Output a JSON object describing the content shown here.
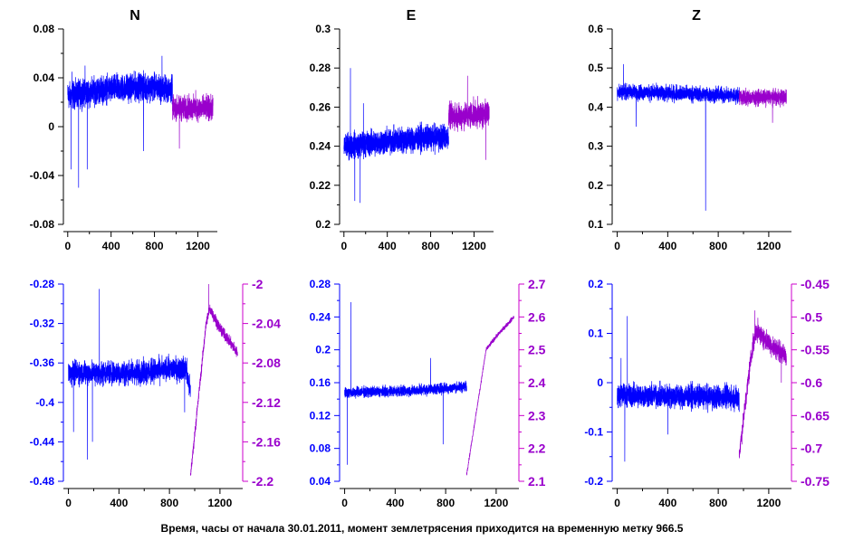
{
  "caption": "Время, часы от начала 30.01.2011, момент землетрясения приходится на временную метку 966.5",
  "colors": {
    "before": "#0000ff",
    "after": "#9900cc",
    "axis": "#000000",
    "right_axis": "#cc00cc"
  },
  "chart_data": [
    {
      "id": "top-N",
      "type": "line",
      "title": "N",
      "xlim": [
        -40,
        1380
      ],
      "xticks": [
        0,
        400,
        800,
        1200
      ],
      "ylim": [
        -0.08,
        0.08
      ],
      "yticks": [
        "-0.08",
        "-0.04",
        "0",
        "0.04",
        "0.08"
      ],
      "series": [
        {
          "color": "#0000ff",
          "x_range": [
            0,
            966
          ],
          "base": [
            [
              0,
              0.025
            ],
            [
              300,
              0.03
            ],
            [
              700,
              0.033
            ],
            [
              966,
              0.03
            ]
          ],
          "noise": 0.01,
          "spikes": [
            [
              30,
              -0.035
            ],
            [
              40,
              0.045
            ],
            [
              100,
              -0.05
            ],
            [
              160,
              0.05
            ],
            [
              180,
              -0.035
            ],
            [
              700,
              -0.02
            ],
            [
              870,
              0.058
            ]
          ]
        },
        {
          "color": "#9900cc",
          "x_range": [
            966,
            1340
          ],
          "base": [
            [
              966,
              0.015
            ],
            [
              1340,
              0.015
            ]
          ],
          "noise": 0.009,
          "spikes": [
            [
              1030,
              -0.018
            ],
            [
              1180,
              0.03
            ]
          ]
        }
      ]
    },
    {
      "id": "top-E",
      "type": "line",
      "title": "E",
      "xlim": [
        -40,
        1380
      ],
      "xticks": [
        0,
        400,
        800,
        1200
      ],
      "ylim": [
        0.2,
        0.3
      ],
      "yticks": [
        "0.2",
        "0.22",
        "0.24",
        "0.26",
        "0.28",
        "0.3"
      ],
      "series": [
        {
          "color": "#0000ff",
          "x_range": [
            0,
            966
          ],
          "base": [
            [
              0,
              0.24
            ],
            [
              500,
              0.243
            ],
            [
              966,
              0.245
            ]
          ],
          "noise": 0.006,
          "spikes": [
            [
              60,
              0.28
            ],
            [
              100,
              0.212
            ],
            [
              150,
              0.211
            ],
            [
              180,
              0.262
            ]
          ]
        },
        {
          "color": "#9900cc",
          "x_range": [
            966,
            1340
          ],
          "base": [
            [
              966,
              0.255
            ],
            [
              1340,
              0.257
            ]
          ],
          "noise": 0.006,
          "spikes": [
            [
              1140,
              0.276
            ],
            [
              1310,
              0.233
            ]
          ]
        }
      ]
    },
    {
      "id": "top-Z",
      "type": "line",
      "title": "Z",
      "xlim": [
        -40,
        1380
      ],
      "xticks": [
        0,
        400,
        800,
        1200
      ],
      "ylim": [
        0.1,
        0.6
      ],
      "yticks": [
        "0.1",
        "0.2",
        "0.3",
        "0.4",
        "0.5",
        "0.6"
      ],
      "series": [
        {
          "color": "#0000ff",
          "x_range": [
            0,
            966
          ],
          "base": [
            [
              0,
              0.44
            ],
            [
              966,
              0.43
            ]
          ],
          "noise": 0.018,
          "spikes": [
            [
              50,
              0.51
            ],
            [
              150,
              0.35
            ],
            [
              700,
              0.135
            ]
          ]
        },
        {
          "color": "#9900cc",
          "x_range": [
            966,
            1340
          ],
          "base": [
            [
              966,
              0.425
            ],
            [
              1340,
              0.425
            ]
          ],
          "noise": 0.018,
          "spikes": [
            [
              1230,
              0.36
            ]
          ]
        }
      ]
    },
    {
      "id": "bottom-N",
      "type": "line",
      "xlim": [
        -40,
        1380
      ],
      "xticks": [
        0,
        400,
        800,
        1200
      ],
      "ylim": [
        -0.48,
        -0.28
      ],
      "yticks": [
        "-0.48",
        "-0.44",
        "-0.4",
        "-0.36",
        "-0.32",
        "-0.28"
      ],
      "y2lim": [
        -2.2,
        -2.0
      ],
      "y2ticks": [
        "-2.2",
        "-2.16",
        "-2.12",
        "-2.08",
        "-2.04",
        "-2"
      ],
      "series": [
        {
          "color": "#0000ff",
          "axis": "left",
          "x_range": [
            0,
            966
          ],
          "base": [
            [
              0,
              -0.37
            ],
            [
              500,
              -0.37
            ],
            [
              930,
              -0.365
            ],
            [
              966,
              -0.39
            ]
          ],
          "noise": 0.011,
          "spikes": [
            [
              40,
              -0.43
            ],
            [
              150,
              -0.458
            ],
            [
              190,
              -0.44
            ],
            [
              245,
              -0.285
            ],
            [
              920,
              -0.41
            ]
          ]
        },
        {
          "color": "#9900cc",
          "axis": "right",
          "x_range": [
            966,
            1340
          ],
          "base": [
            [
              966,
              -2.195
            ],
            [
              1090,
              -2.04
            ],
            [
              1120,
              -2.025
            ],
            [
              1200,
              -2.045
            ],
            [
              1340,
              -2.07
            ]
          ],
          "noise": 0.005,
          "spikes": [
            [
              1110,
              -2.0
            ]
          ]
        }
      ]
    },
    {
      "id": "bottom-E",
      "type": "line",
      "xlim": [
        -40,
        1380
      ],
      "xticks": [
        0,
        400,
        800,
        1200
      ],
      "ylim": [
        0.04,
        0.28
      ],
      "yticks": [
        "0.04",
        "0.08",
        "0.12",
        "0.16",
        "0.2",
        "0.24",
        "0.28"
      ],
      "y2lim": [
        2.1,
        2.7
      ],
      "y2ticks": [
        "2.1",
        "2.2",
        "2.3",
        "2.4",
        "2.5",
        "2.6",
        "2.7"
      ],
      "series": [
        {
          "color": "#0000ff",
          "axis": "left",
          "x_range": [
            0,
            966
          ],
          "base": [
            [
              0,
              0.148
            ],
            [
              500,
              0.15
            ],
            [
              966,
              0.155
            ]
          ],
          "noise": 0.006,
          "spikes": [
            [
              20,
              0.06
            ],
            [
              50,
              0.258
            ],
            [
              680,
              0.19
            ],
            [
              780,
              0.085
            ]
          ]
        },
        {
          "color": "#9900cc",
          "axis": "right",
          "x_range": [
            966,
            1340
          ],
          "base": [
            [
              966,
              2.12
            ],
            [
              1120,
              2.5
            ],
            [
              1200,
              2.54
            ],
            [
              1340,
              2.6
            ]
          ],
          "noise": 0.006,
          "spikes": []
        }
      ]
    },
    {
      "id": "bottom-Z",
      "type": "line",
      "xlim": [
        -40,
        1380
      ],
      "xticks": [
        0,
        400,
        800,
        1200
      ],
      "ylim": [
        -0.2,
        0.2
      ],
      "yticks": [
        "-0.2",
        "-0.1",
        "0",
        "0.1",
        "0.2"
      ],
      "y2lim": [
        -0.75,
        -0.45
      ],
      "y2ticks": [
        "-0.75",
        "-0.7",
        "-0.65",
        "-0.6",
        "-0.55",
        "-0.5",
        "-0.45"
      ],
      "series": [
        {
          "color": "#0000ff",
          "axis": "left",
          "x_range": [
            0,
            966
          ],
          "base": [
            [
              0,
              -0.025
            ],
            [
              966,
              -0.03
            ]
          ],
          "noise": 0.022,
          "spikes": [
            [
              30,
              0.05
            ],
            [
              60,
              -0.16
            ],
            [
              80,
              0.135
            ],
            [
              400,
              -0.105
            ]
          ]
        },
        {
          "color": "#9900cc",
          "axis": "right",
          "x_range": [
            966,
            1340
          ],
          "base": [
            [
              966,
              -0.71
            ],
            [
              1060,
              -0.56
            ],
            [
              1100,
              -0.52
            ],
            [
              1200,
              -0.54
            ],
            [
              1340,
              -0.56
            ]
          ],
          "noise": 0.014,
          "spikes": [
            [
              1090,
              -0.49
            ],
            [
              1300,
              -0.6
            ]
          ]
        }
      ]
    }
  ]
}
